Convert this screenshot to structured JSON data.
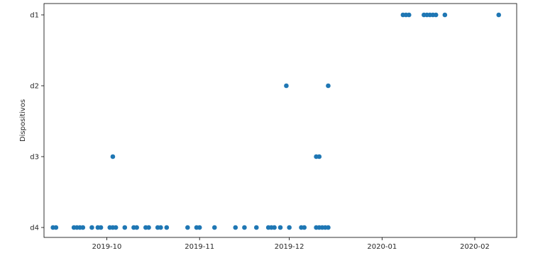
{
  "chart_data": {
    "type": "scatter",
    "title": "",
    "xlabel": "",
    "ylabel": "Dispositivos",
    "y_categories": [
      "d4",
      "d3",
      "d2",
      "d1"
    ],
    "x_ticks": [
      "2019-10",
      "2019-11",
      "2019-12",
      "2020-01",
      "2020-02"
    ],
    "x_range": [
      "2019-09-10",
      "2020-02-15"
    ],
    "grid": false,
    "marker_color": "#1f77b4",
    "series": [
      {
        "points": [
          {
            "x": "2019-09-13",
            "y": "d4"
          },
          {
            "x": "2019-09-14",
            "y": "d4"
          },
          {
            "x": "2019-09-20",
            "y": "d4"
          },
          {
            "x": "2019-09-21",
            "y": "d4"
          },
          {
            "x": "2019-09-22",
            "y": "d4"
          },
          {
            "x": "2019-09-23",
            "y": "d4"
          },
          {
            "x": "2019-09-26",
            "y": "d4"
          },
          {
            "x": "2019-09-28",
            "y": "d4"
          },
          {
            "x": "2019-09-29",
            "y": "d4"
          },
          {
            "x": "2019-10-02",
            "y": "d4"
          },
          {
            "x": "2019-10-03",
            "y": "d4"
          },
          {
            "x": "2019-10-04",
            "y": "d4"
          },
          {
            "x": "2019-10-07",
            "y": "d4"
          },
          {
            "x": "2019-10-10",
            "y": "d4"
          },
          {
            "x": "2019-10-11",
            "y": "d4"
          },
          {
            "x": "2019-10-14",
            "y": "d4"
          },
          {
            "x": "2019-10-15",
            "y": "d4"
          },
          {
            "x": "2019-10-18",
            "y": "d4"
          },
          {
            "x": "2019-10-19",
            "y": "d4"
          },
          {
            "x": "2019-10-21",
            "y": "d4"
          },
          {
            "x": "2019-10-28",
            "y": "d4"
          },
          {
            "x": "2019-10-31",
            "y": "d4"
          },
          {
            "x": "2019-11-01",
            "y": "d4"
          },
          {
            "x": "2019-11-06",
            "y": "d4"
          },
          {
            "x": "2019-11-13",
            "y": "d4"
          },
          {
            "x": "2019-11-16",
            "y": "d4"
          },
          {
            "x": "2019-11-20",
            "y": "d4"
          },
          {
            "x": "2019-11-24",
            "y": "d4"
          },
          {
            "x": "2019-11-25",
            "y": "d4"
          },
          {
            "x": "2019-11-26",
            "y": "d4"
          },
          {
            "x": "2019-11-28",
            "y": "d4"
          },
          {
            "x": "2019-12-01",
            "y": "d4"
          },
          {
            "x": "2019-12-05",
            "y": "d4"
          },
          {
            "x": "2019-12-06",
            "y": "d4"
          },
          {
            "x": "2019-12-10",
            "y": "d4"
          },
          {
            "x": "2019-12-11",
            "y": "d4"
          },
          {
            "x": "2019-12-12",
            "y": "d4"
          },
          {
            "x": "2019-12-13",
            "y": "d4"
          },
          {
            "x": "2019-12-14",
            "y": "d4"
          },
          {
            "x": "2019-10-03",
            "y": "d3"
          },
          {
            "x": "2019-12-10",
            "y": "d3"
          },
          {
            "x": "2019-12-11",
            "y": "d3"
          },
          {
            "x": "2019-11-30",
            "y": "d2"
          },
          {
            "x": "2019-12-14",
            "y": "d2"
          },
          {
            "x": "2020-01-08",
            "y": "d1"
          },
          {
            "x": "2020-01-09",
            "y": "d1"
          },
          {
            "x": "2020-01-10",
            "y": "d1"
          },
          {
            "x": "2020-01-15",
            "y": "d1"
          },
          {
            "x": "2020-01-16",
            "y": "d1"
          },
          {
            "x": "2020-01-17",
            "y": "d1"
          },
          {
            "x": "2020-01-18",
            "y": "d1"
          },
          {
            "x": "2020-01-19",
            "y": "d1"
          },
          {
            "x": "2020-01-22",
            "y": "d1"
          },
          {
            "x": "2020-02-09",
            "y": "d1"
          }
        ]
      }
    ]
  }
}
